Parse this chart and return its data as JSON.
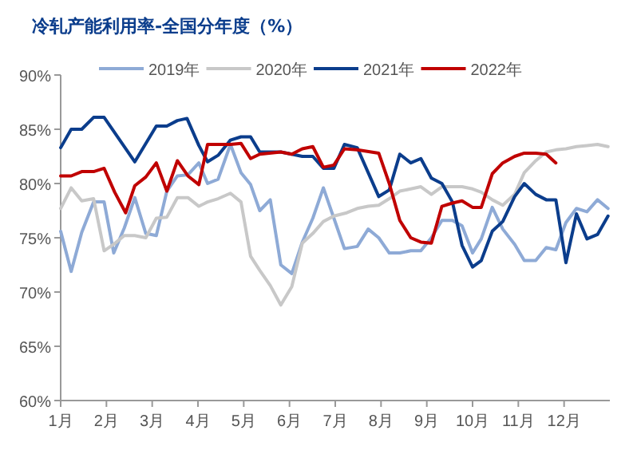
{
  "chart_data": {
    "type": "line",
    "title": "冷轧产能利用率-全国分年度（%）",
    "legend": "top",
    "grid": false,
    "marker": "none",
    "line_style": "solid",
    "xlim": [
      1,
      13
    ],
    "xticks": [
      {
        "value": 1,
        "label": "1月"
      },
      {
        "value": 2,
        "label": "2月"
      },
      {
        "value": 3,
        "label": "3月"
      },
      {
        "value": 4,
        "label": "4月"
      },
      {
        "value": 5,
        "label": "5月"
      },
      {
        "value": 6,
        "label": "6月"
      },
      {
        "value": 7,
        "label": "7月"
      },
      {
        "value": 8,
        "label": "8月"
      },
      {
        "value": 9,
        "label": "9月"
      },
      {
        "value": 10,
        "label": "10月"
      },
      {
        "value": 11,
        "label": "11月"
      },
      {
        "value": 12,
        "label": "12月"
      }
    ],
    "ylim": [
      60,
      90
    ],
    "yticks": [
      {
        "value": 60,
        "label": "60%"
      },
      {
        "value": 65,
        "label": "65%"
      },
      {
        "value": 70,
        "label": "70%"
      },
      {
        "value": 75,
        "label": "75%"
      },
      {
        "value": 80,
        "label": "80%"
      },
      {
        "value": 85,
        "label": "85%"
      },
      {
        "value": 90,
        "label": "90%"
      }
    ],
    "series": [
      {
        "name": "2019年",
        "color": "#8eaad6",
        "x": [
          1,
          1.23,
          1.46,
          1.72,
          1.95,
          2.16,
          2.39,
          2.62,
          2.86,
          3.09,
          3.32,
          3.55,
          3.78,
          4.02,
          4.21,
          4.44,
          4.71,
          4.94,
          5.15,
          5.35,
          5.58,
          5.81,
          6.05,
          6.28,
          6.51,
          6.74,
          6.97,
          7.2,
          7.48,
          7.72,
          7.95,
          8.18,
          8.41,
          8.65,
          8.87,
          9.1,
          9.33,
          9.56,
          9.77,
          10.0,
          10.19,
          10.43,
          10.66,
          10.92,
          11.13,
          11.38,
          11.61,
          11.82,
          12.04,
          12.27,
          12.5,
          12.73,
          12.96
        ],
        "values": [
          75.6,
          71.9,
          75.5,
          78.3,
          78.3,
          73.6,
          75.9,
          78.7,
          75.4,
          75.2,
          79.3,
          80.7,
          80.8,
          81.9,
          80.0,
          80.4,
          83.6,
          81.0,
          79.9,
          77.5,
          78.5,
          72.5,
          71.7,
          74.6,
          76.8,
          79.6,
          76.8,
          74.0,
          74.2,
          75.8,
          75.0,
          73.6,
          73.6,
          73.8,
          73.8,
          75.0,
          76.6,
          76.6,
          76.1,
          73.6,
          74.9,
          77.8,
          75.8,
          74.4,
          72.9,
          72.9,
          74.1,
          73.9,
          76.4,
          77.7,
          77.4,
          78.5,
          77.7
        ]
      },
      {
        "name": "2020年",
        "color": "#c8c8c8",
        "x": [
          1,
          1.23,
          1.46,
          1.72,
          1.95,
          2.16,
          2.39,
          2.62,
          2.86,
          3.09,
          3.32,
          3.55,
          3.78,
          4.02,
          4.21,
          4.44,
          4.71,
          4.94,
          5.15,
          5.35,
          5.58,
          5.81,
          6.05,
          6.28,
          6.51,
          6.74,
          6.97,
          7.25,
          7.48,
          7.72,
          7.95,
          8.18,
          8.41,
          8.65,
          8.87,
          9.1,
          9.33,
          9.56,
          9.77,
          10.0,
          10.19,
          10.43,
          10.66,
          10.92,
          11.13,
          11.38,
          11.61,
          11.82,
          12.04,
          12.27,
          12.5,
          12.73,
          12.96
        ],
        "values": [
          77.7,
          79.6,
          78.4,
          78.6,
          73.8,
          74.4,
          75.2,
          75.2,
          75.0,
          76.8,
          76.9,
          78.7,
          78.7,
          77.9,
          78.3,
          78.6,
          79.1,
          78.3,
          73.3,
          72.0,
          70.6,
          68.8,
          70.5,
          74.5,
          75.4,
          76.5,
          77.0,
          77.3,
          77.7,
          77.9,
          78.0,
          78.6,
          79.3,
          79.5,
          79.7,
          79.0,
          79.7,
          79.7,
          79.7,
          79.5,
          79.2,
          78.5,
          78.0,
          79.0,
          81.0,
          82.1,
          82.9,
          83.1,
          83.2,
          83.4,
          83.5,
          83.6,
          83.4
        ]
      },
      {
        "name": "2021年",
        "color": "#0b3d8c",
        "x": [
          1,
          1.23,
          1.46,
          1.72,
          1.95,
          2.62,
          3.09,
          3.32,
          3.55,
          3.76,
          4.02,
          4.21,
          4.44,
          4.71,
          4.94,
          5.15,
          5.35,
          5.81,
          6.05,
          6.28,
          6.51,
          6.74,
          6.97,
          7.2,
          7.48,
          7.95,
          8.18,
          8.41,
          8.65,
          8.87,
          9.1,
          9.33,
          9.56,
          9.77,
          10.0,
          10.19,
          10.43,
          10.66,
          10.92,
          11.13,
          11.38,
          11.61,
          11.82,
          12.04,
          12.27,
          12.5,
          12.73,
          12.96
        ],
        "values": [
          83.3,
          85.0,
          85.0,
          86.1,
          86.1,
          82.0,
          85.3,
          85.3,
          85.8,
          86.0,
          83.5,
          82.0,
          82.6,
          84.0,
          84.3,
          84.3,
          82.9,
          82.9,
          82.7,
          82.5,
          82.5,
          81.4,
          81.4,
          83.6,
          83.3,
          78.8,
          79.4,
          82.7,
          81.9,
          82.3,
          80.5,
          80.0,
          78.3,
          74.3,
          72.3,
          72.9,
          75.6,
          76.5,
          78.8,
          80.0,
          79.0,
          78.5,
          78.5,
          72.7,
          77.2,
          74.9,
          75.3,
          77.0
        ]
      },
      {
        "name": "2022年",
        "color": "#c00000",
        "x": [
          1,
          1.23,
          1.46,
          1.72,
          1.95,
          2.18,
          2.42,
          2.62,
          2.86,
          3.09,
          3.32,
          3.55,
          3.78,
          4.02,
          4.21,
          4.44,
          4.71,
          4.94,
          5.15,
          5.35,
          5.81,
          6.05,
          6.28,
          6.51,
          6.74,
          6.97,
          7.2,
          7.48,
          7.95,
          8.18,
          8.41,
          8.65,
          8.87,
          9.1,
          9.33,
          9.56,
          9.77,
          10.0,
          10.19,
          10.43,
          10.66,
          10.92,
          11.13,
          11.38,
          11.61,
          11.82
        ],
        "values": [
          80.7,
          80.7,
          81.1,
          81.1,
          81.4,
          79.2,
          77.3,
          79.8,
          80.6,
          81.9,
          79.3,
          82.1,
          80.7,
          79.9,
          83.6,
          83.6,
          83.6,
          83.7,
          82.3,
          82.7,
          82.9,
          82.7,
          83.2,
          83.4,
          81.5,
          81.7,
          83.2,
          83.1,
          82.8,
          80.0,
          76.6,
          75.0,
          74.6,
          74.5,
          77.9,
          78.2,
          78.4,
          77.8,
          77.8,
          80.9,
          81.9,
          82.5,
          82.8,
          82.8,
          82.7,
          81.9
        ]
      }
    ]
  }
}
